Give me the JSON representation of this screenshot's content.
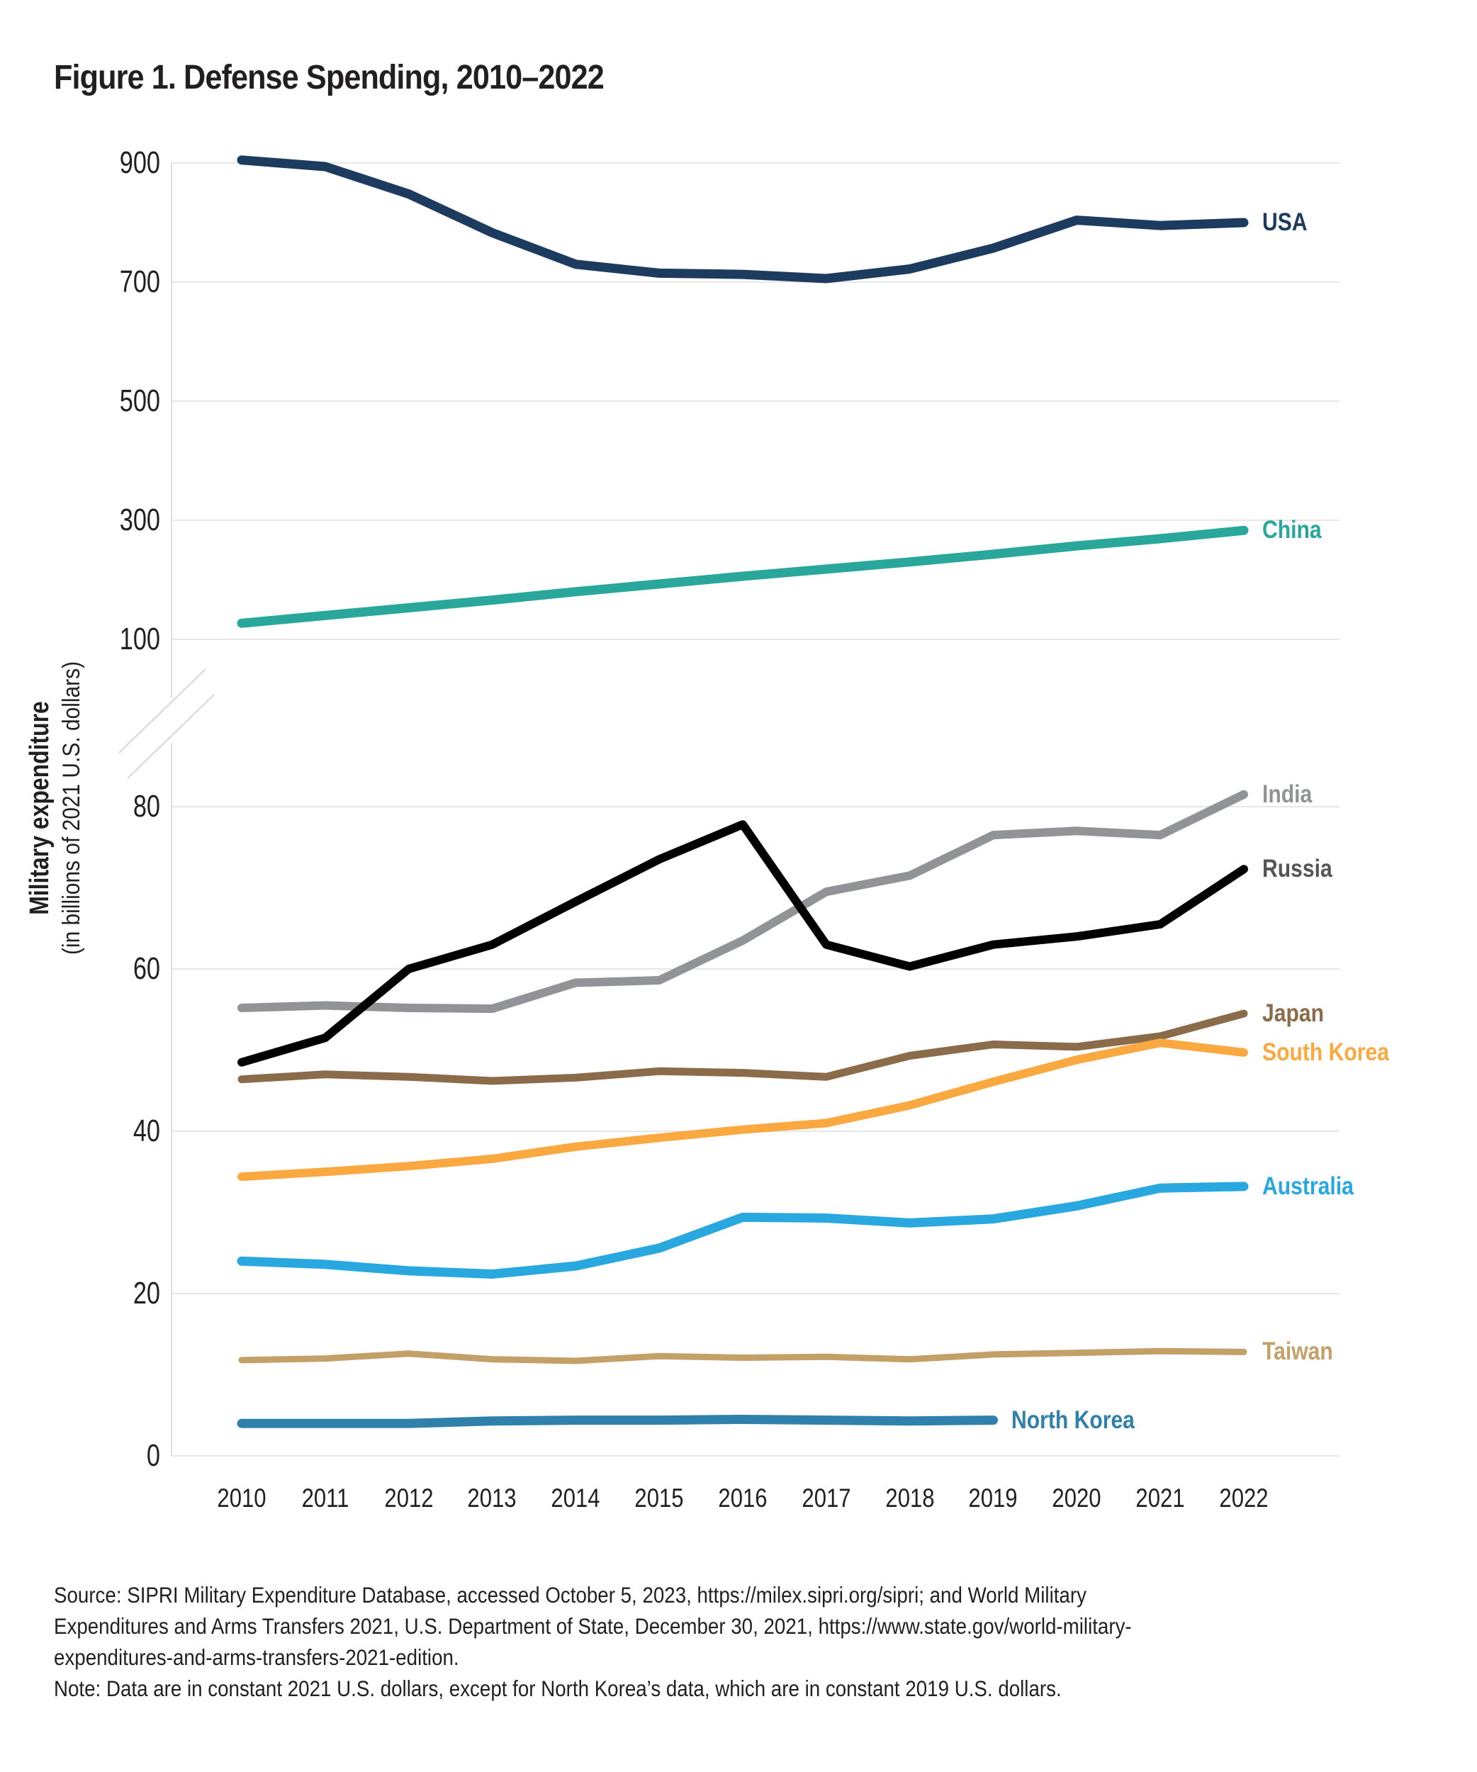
{
  "title": "Figure 1. Defense Spending, 2010–2022",
  "y_axis": {
    "title_bold": "Military expenditure",
    "title_sub": "(in billions of 2021 U.S. dollars)",
    "top_panel_ticks": [
      900,
      700,
      500,
      300,
      100
    ],
    "bottom_panel_ticks": [
      80,
      60,
      40,
      20,
      0
    ],
    "broken_axis": true
  },
  "x_axis": {
    "years": [
      2010,
      2011,
      2012,
      2013,
      2014,
      2015,
      2016,
      2017,
      2018,
      2019,
      2020,
      2021,
      2022
    ]
  },
  "source_note": {
    "lines": [
      "Source: SIPRI Military Expenditure Database, accessed October 5, 2023, https://milex.sipri.org/sipri; and World Military",
      "Expenditures and Arms Transfers 2021, U.S. Department of State, December 30, 2021, https://www.state.gov/world-military-",
      "expenditures-and-arms-transfers-2021-edition.",
      "Note: Data are in constant 2021 U.S. dollars, except for North Korea’s data, which are in constant 2019 U.S. dollars."
    ]
  },
  "colors": {
    "text": "#231f20",
    "gridline": "#e7e7e7",
    "axis_line": "#e0e0e0",
    "break_mark": "#dcdcdc",
    "background": "#ffffff"
  },
  "chart_data": {
    "type": "line",
    "title": "Figure 1. Defense Spending, 2010–2022",
    "xlabel": "",
    "ylabel": "Military expenditure (in billions of 2021 U.S. dollars)",
    "x": [
      2010,
      2011,
      2012,
      2013,
      2014,
      2015,
      2016,
      2017,
      2018,
      2019,
      2020,
      2021,
      2022
    ],
    "axis_break_between": [
      100,
      80
    ],
    "top_panel_range": [
      100,
      940
    ],
    "bottom_panel_range": [
      0,
      84
    ],
    "grid": true,
    "legend_position": "right-of-line-ends",
    "series": [
      {
        "name": "USA",
        "label": "USA",
        "axis_panel": "top",
        "color": "#1c3b5e",
        "label_color": "#1c3b5e",
        "stroke_width": 13,
        "values": [
          905,
          894,
          848,
          783,
          730,
          715,
          713,
          706,
          722,
          757,
          804,
          795,
          800
        ]
      },
      {
        "name": "China",
        "label": "China",
        "axis_panel": "top",
        "color": "#2aa79b",
        "label_color": "#2aa79b",
        "stroke_width": 13,
        "values": [
          127,
          140,
          153,
          166,
          180,
          193,
          206,
          218,
          230,
          243,
          257,
          269,
          283
        ]
      },
      {
        "name": "India",
        "label": "India",
        "axis_panel": "bottom",
        "color": "#919396",
        "label_color": "#919396",
        "stroke_width": 12,
        "values": [
          55.2,
          55.5,
          55.2,
          55.1,
          58.3,
          58.6,
          63.5,
          69.5,
          71.5,
          76.5,
          77.0,
          76.5,
          81.5
        ]
      },
      {
        "name": "Russia",
        "label": "Russia",
        "axis_panel": "bottom",
        "color": "#000000",
        "label_color": "#555557",
        "stroke_width": 12,
        "values": [
          48.5,
          51.5,
          60.0,
          63.0,
          68.3,
          73.5,
          77.8,
          63.0,
          60.3,
          63.0,
          64.0,
          65.5,
          72.3
        ]
      },
      {
        "name": "Japan",
        "label": "Japan",
        "axis_panel": "bottom",
        "color": "#8a6c4b",
        "label_color": "#8a6c4b",
        "stroke_width": 11,
        "values": [
          46.4,
          47.0,
          46.7,
          46.2,
          46.6,
          47.4,
          47.2,
          46.7,
          49.3,
          50.7,
          50.4,
          51.7,
          54.5
        ]
      },
      {
        "name": "South Korea",
        "label": "South Korea",
        "axis_panel": "bottom",
        "color": "#f9a940",
        "label_color": "#f9a940",
        "stroke_width": 12,
        "values": [
          34.4,
          35.0,
          35.7,
          36.6,
          38.1,
          39.2,
          40.2,
          41.0,
          43.2,
          46.1,
          48.8,
          50.9,
          49.7
        ]
      },
      {
        "name": "Australia",
        "label": "Australia",
        "axis_panel": "bottom",
        "color": "#29a8e0",
        "label_color": "#29a8e0",
        "stroke_width": 13,
        "values": [
          24.0,
          23.6,
          22.8,
          22.4,
          23.4,
          25.6,
          29.4,
          29.3,
          28.7,
          29.2,
          30.8,
          33.0,
          33.2
        ]
      },
      {
        "name": "Taiwan",
        "label": "Taiwan",
        "axis_panel": "bottom",
        "color": "#c2a068",
        "label_color": "#c2a068",
        "stroke_width": 9,
        "values": [
          11.8,
          12.0,
          12.6,
          11.9,
          11.7,
          12.3,
          12.1,
          12.2,
          11.9,
          12.5,
          12.7,
          12.9,
          12.8
        ]
      },
      {
        "name": "North Korea",
        "label": "North Korea",
        "axis_panel": "bottom",
        "color": "#2f80ab",
        "label_color": "#2f80ab",
        "stroke_width": 13,
        "x": [
          2010,
          2011,
          2012,
          2013,
          2014,
          2015,
          2016,
          2017,
          2018,
          2019
        ],
        "values": [
          4.0,
          4.0,
          4.0,
          4.3,
          4.4,
          4.4,
          4.5,
          4.4,
          4.3,
          4.4
        ]
      }
    ]
  }
}
